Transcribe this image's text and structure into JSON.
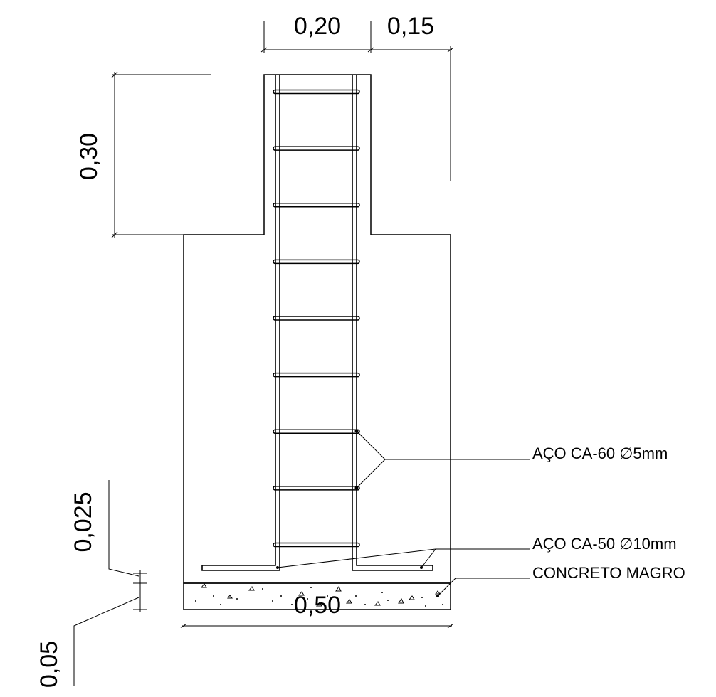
{
  "dimensions": {
    "column_width": "0,20",
    "offset": "0,15",
    "column_height": "0,30",
    "cover": "0,025",
    "lean_concrete": "0,05",
    "footing_width": "0,50"
  },
  "callouts": {
    "stirrups": "AÇO CA-60 ∅5mm",
    "main_bars": "AÇO CA-50 ∅10mm",
    "lean_concrete": "CONCRETO MAGRO"
  },
  "stirrups": {
    "count": 9
  }
}
